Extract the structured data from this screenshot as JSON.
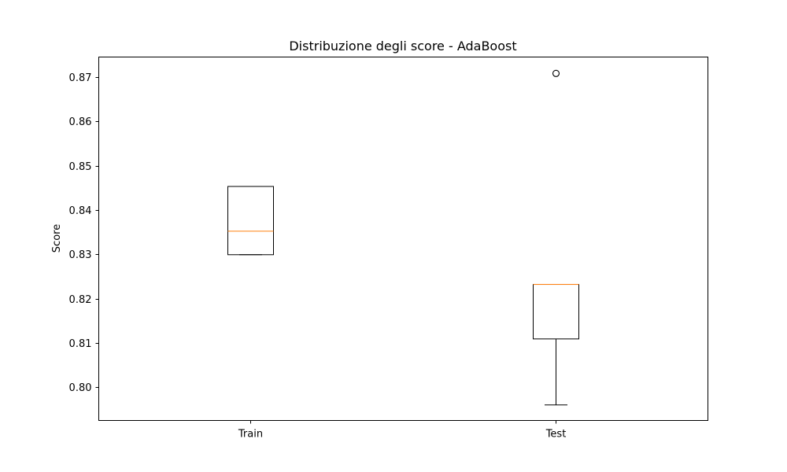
{
  "chart_data": {
    "type": "box",
    "title": "Distribuzione degli score - AdaBoost",
    "xlabel": "",
    "ylabel": "Score",
    "ylim": [
      0.7925,
      0.8745
    ],
    "yticks": [
      0.8,
      0.81,
      0.82,
      0.83,
      0.84,
      0.85,
      0.86,
      0.87
    ],
    "ytick_labels": [
      "0.80",
      "0.81",
      "0.82",
      "0.83",
      "0.84",
      "0.85",
      "0.86",
      "0.87"
    ],
    "grid": false,
    "categories": [
      "Train",
      "Test"
    ],
    "boxes": [
      {
        "name": "Train",
        "whisker_low": 0.8299,
        "q1": 0.8299,
        "median": 0.8352,
        "q3": 0.8453,
        "whisker_high": 0.8453,
        "outliers": []
      },
      {
        "name": "Test",
        "whisker_low": 0.796,
        "q1": 0.8109,
        "median": 0.8232,
        "q3": 0.8232,
        "whisker_high": 0.8232,
        "outliers": [
          0.8708
        ]
      }
    ],
    "colors": {
      "box": "#000000",
      "median": "#ff7f0e",
      "outlier": "#000000"
    }
  }
}
